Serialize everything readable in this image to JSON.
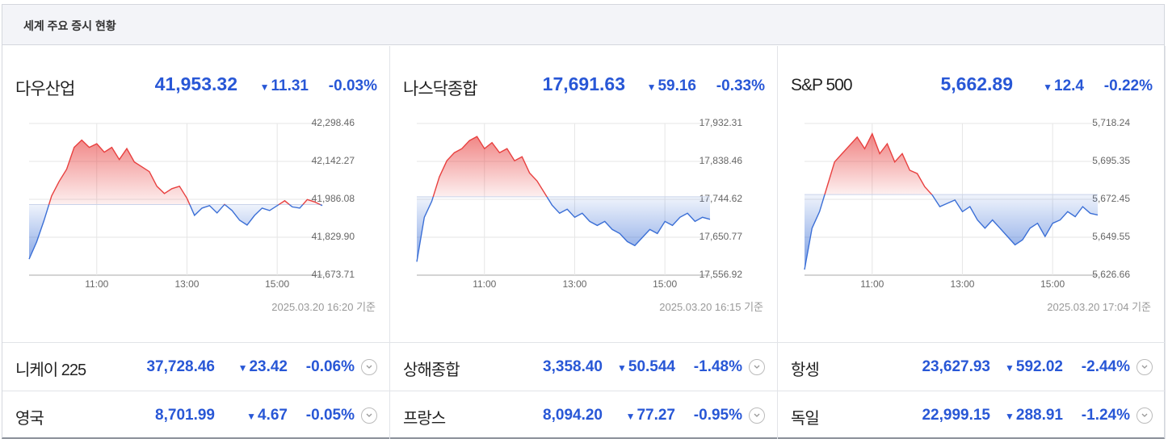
{
  "header": {
    "title": "세계 주요 증시 현황"
  },
  "panels": [
    {
      "name": "다우산업",
      "price": "41,953.32",
      "change": "11.31",
      "change_pct": "-0.03%",
      "timestamp": "2025.03.20 16:20 기준",
      "chart": {
        "type": "line",
        "up_color": "#e8403f",
        "down_color": "#3b6fd6",
        "baseline": 41964.63,
        "x": [
          "09:30",
          "09:40",
          "09:50",
          "10:00",
          "10:10",
          "10:20",
          "10:30",
          "10:40",
          "10:50",
          "11:00",
          "11:10",
          "11:20",
          "11:30",
          "11:40",
          "11:50",
          "12:00",
          "12:10",
          "12:20",
          "12:30",
          "12:40",
          "12:50",
          "13:00",
          "13:10",
          "13:20",
          "13:30",
          "13:40",
          "13:50",
          "14:00",
          "14:10",
          "14:20",
          "14:30",
          "14:40",
          "14:50",
          "15:00",
          "15:10",
          "15:20",
          "15:30",
          "15:40",
          "15:50",
          "16:00"
        ],
        "values": [
          41740,
          41810,
          41900,
          42000,
          42060,
          42110,
          42200,
          42230,
          42200,
          42215,
          42180,
          42200,
          42150,
          42195,
          42140,
          42120,
          42100,
          42040,
          42010,
          42030,
          42040,
          41990,
          41920,
          41950,
          41960,
          41930,
          41965,
          41940,
          41900,
          41880,
          41920,
          41950,
          41940,
          41960,
          41980,
          41955,
          41950,
          41985,
          41975,
          41960
        ],
        "xlim": [
          "09:30",
          "16:00"
        ],
        "xticks": [
          "11:00",
          "13:00",
          "15:00"
        ],
        "ylim": [
          41673.71,
          42298.46
        ],
        "yticks": [
          {
            "value": 41673.71,
            "label": "41,673.71"
          },
          {
            "value": 41829.9,
            "label": "41,829.90"
          },
          {
            "value": 41986.08,
            "label": "41,986.08"
          },
          {
            "value": 42142.27,
            "label": "42,142.27"
          },
          {
            "value": 42298.46,
            "label": "42,298.46"
          }
        ]
      }
    },
    {
      "name": "나스닥종합",
      "price": "17,691.63",
      "change": "59.16",
      "change_pct": "-0.33%",
      "timestamp": "2025.03.20 16:15 기준",
      "chart": {
        "type": "line",
        "up_color": "#e8403f",
        "down_color": "#3b6fd6",
        "baseline": 17750.79,
        "x": [
          "09:30",
          "09:40",
          "09:50",
          "10:00",
          "10:10",
          "10:20",
          "10:30",
          "10:40",
          "10:50",
          "11:00",
          "11:10",
          "11:20",
          "11:30",
          "11:40",
          "11:50",
          "12:00",
          "12:10",
          "12:20",
          "12:30",
          "12:40",
          "12:50",
          "13:00",
          "13:10",
          "13:20",
          "13:30",
          "13:40",
          "13:50",
          "14:00",
          "14:10",
          "14:20",
          "14:30",
          "14:40",
          "14:50",
          "15:00",
          "15:10",
          "15:20",
          "15:30",
          "15:40",
          "15:50",
          "16:00"
        ],
        "values": [
          17590,
          17700,
          17740,
          17800,
          17840,
          17860,
          17870,
          17890,
          17900,
          17870,
          17885,
          17860,
          17870,
          17840,
          17850,
          17810,
          17790,
          17760,
          17730,
          17710,
          17720,
          17700,
          17710,
          17690,
          17680,
          17690,
          17670,
          17660,
          17640,
          17630,
          17650,
          17670,
          17660,
          17690,
          17680,
          17700,
          17710,
          17690,
          17700,
          17695
        ],
        "xlim": [
          "09:30",
          "16:00"
        ],
        "xticks": [
          "11:00",
          "13:00",
          "15:00"
        ],
        "ylim": [
          17556.92,
          17932.31
        ],
        "yticks": [
          {
            "value": 17556.92,
            "label": "17,556.92"
          },
          {
            "value": 17650.77,
            "label": "17,650.77"
          },
          {
            "value": 17744.62,
            "label": "17,744.62"
          },
          {
            "value": 17838.46,
            "label": "17,838.46"
          },
          {
            "value": 17932.31,
            "label": "17,932.31"
          }
        ]
      }
    },
    {
      "name": "S&P 500",
      "price": "5,662.89",
      "change": "12.4",
      "change_pct": "-0.22%",
      "timestamp": "2025.03.20 17:04 기준",
      "chart": {
        "type": "line",
        "up_color": "#e8403f",
        "down_color": "#3b6fd6",
        "baseline": 5675.29,
        "x": [
          "09:30",
          "09:40",
          "09:50",
          "10:00",
          "10:10",
          "10:20",
          "10:30",
          "10:40",
          "10:50",
          "11:00",
          "11:10",
          "11:20",
          "11:30",
          "11:40",
          "11:50",
          "12:00",
          "12:10",
          "12:20",
          "12:30",
          "12:40",
          "12:50",
          "13:00",
          "13:10",
          "13:20",
          "13:30",
          "13:40",
          "13:50",
          "14:00",
          "14:10",
          "14:20",
          "14:30",
          "14:40",
          "14:50",
          "15:00",
          "15:10",
          "15:20",
          "15:30",
          "15:40",
          "15:50",
          "16:00"
        ],
        "values": [
          5630,
          5655,
          5665,
          5680,
          5695,
          5700,
          5705,
          5710,
          5703,
          5712,
          5700,
          5706,
          5695,
          5700,
          5690,
          5688,
          5680,
          5675,
          5668,
          5670,
          5672,
          5665,
          5668,
          5660,
          5655,
          5660,
          5655,
          5650,
          5645,
          5648,
          5655,
          5658,
          5650,
          5658,
          5660,
          5665,
          5662,
          5668,
          5664,
          5663
        ],
        "xlim": [
          "09:30",
          "16:00"
        ],
        "xticks": [
          "11:00",
          "13:00",
          "15:00"
        ],
        "ylim": [
          5626.66,
          5718.24
        ],
        "yticks": [
          {
            "value": 5626.66,
            "label": "5,626.66"
          },
          {
            "value": 5649.55,
            "label": "5,649.55"
          },
          {
            "value": 5672.45,
            "label": "5,672.45"
          },
          {
            "value": 5695.35,
            "label": "5,695.35"
          },
          {
            "value": 5718.24,
            "label": "5,718.24"
          }
        ]
      }
    }
  ],
  "rows": [
    [
      {
        "name": "니케이 225",
        "price": "37,728.46",
        "change": "23.42",
        "change_pct": "-0.06%"
      },
      {
        "name": "상해종합",
        "price": "3,358.40",
        "change": "50.544",
        "change_pct": "-1.48%"
      },
      {
        "name": "항셍",
        "price": "23,627.93",
        "change": "592.02",
        "change_pct": "-2.44%"
      }
    ],
    [
      {
        "name": "영국",
        "price": "8,701.99",
        "change": "4.67",
        "change_pct": "-0.05%"
      },
      {
        "name": "프랑스",
        "price": "8,094.20",
        "change": "77.27",
        "change_pct": "-0.95%"
      },
      {
        "name": "독일",
        "price": "22,999.15",
        "change": "288.91",
        "change_pct": "-1.24%"
      }
    ]
  ]
}
